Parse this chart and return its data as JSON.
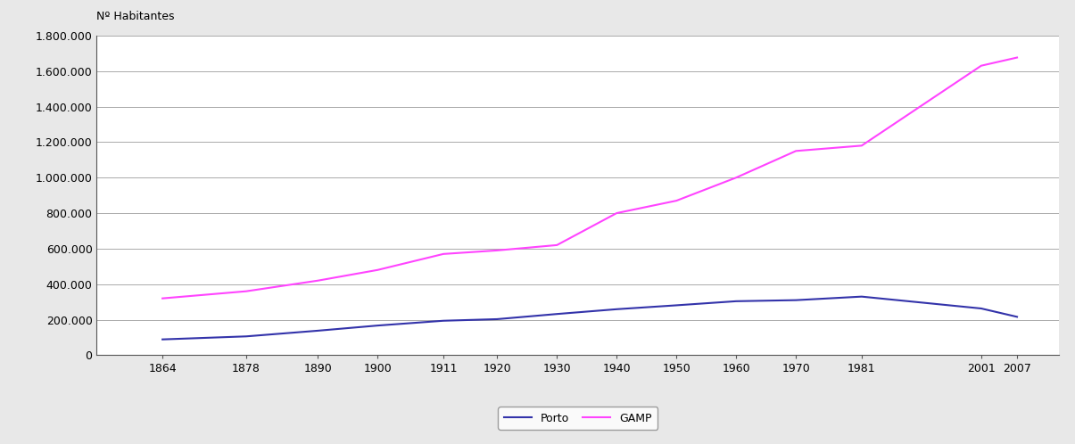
{
  "years": [
    1864,
    1878,
    1890,
    1900,
    1911,
    1920,
    1930,
    1940,
    1950,
    1960,
    1970,
    1981,
    2001,
    2007
  ],
  "porto": [
    89000,
    106000,
    138000,
    167000,
    194000,
    203000,
    232000,
    259000,
    281000,
    304000,
    310000,
    330000,
    263131,
    216080
  ],
  "gamp": [
    320000,
    360000,
    420000,
    480000,
    570000,
    590000,
    620000,
    800000,
    870000,
    1000000,
    1150000,
    1180000,
    1630000,
    1676000
  ],
  "porto_color": "#3333AA",
  "gamp_color": "#FF44FF",
  "background_color": "#E8E8E8",
  "plot_bg_color": "#FFFFFF",
  "ylabel": "Nº Habitantes",
  "ylim": [
    0,
    1800000
  ],
  "ytick_step": 200000,
  "xtick_labels": [
    "1864",
    "1878",
    "1890",
    "1900",
    "1911",
    "1920",
    "1930",
    "1940",
    "1950",
    "1960",
    "1970",
    "1981",
    "2001",
    "2007"
  ],
  "legend_porto": "Porto",
  "legend_gamp": "GAMP",
  "grid_color": "#AAAAAA",
  "line_width": 1.5,
  "tick_fontsize": 9,
  "ylabel_fontsize": 9,
  "xlim_left": 1853,
  "xlim_right": 2014
}
